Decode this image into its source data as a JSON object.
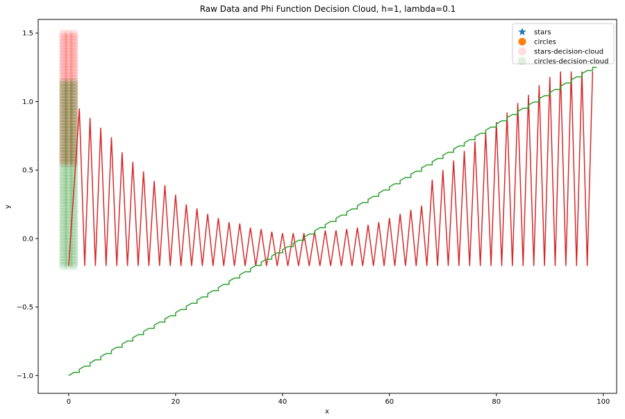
{
  "chart_data": {
    "type": "line",
    "title": "Raw Data and Phi Function Decision Cloud, h=1, lambda=0.1",
    "xlabel": "x",
    "ylabel": "y",
    "xlim": [
      -5.7,
      102.5
    ],
    "ylim": [
      -1.13,
      1.6
    ],
    "x_ticks": [
      0,
      20,
      40,
      60,
      80,
      100
    ],
    "x_tick_labels": [
      "0",
      "20",
      "40",
      "60",
      "80",
      "100"
    ],
    "y_ticks": [
      -1.0,
      -0.5,
      0.0,
      0.5,
      1.0,
      1.5
    ],
    "y_tick_labels": [
      "−1.0",
      "−0.5",
      "0.0",
      "0.5",
      "1.0",
      "1.5"
    ],
    "grid": false,
    "legend_position": "top-right",
    "legend": [
      {
        "label": "stars",
        "marker": "star",
        "color": "#1f77b4"
      },
      {
        "label": "circles",
        "marker": "circle",
        "color": "#ff7f0e"
      },
      {
        "label": "stars-decision-cloud",
        "marker": "circle-faint",
        "color": "#ff0000"
      },
      {
        "label": "circles-decision-cloud",
        "marker": "circle-faint",
        "color": "#008000"
      }
    ],
    "colors": {
      "zigzag": "#d62728",
      "staircase": "#2ca02c",
      "stars_cloud": "#ff0000",
      "circles_cloud": "#008000"
    },
    "series": [
      {
        "kind": "zigzag",
        "x_range": [
          0,
          98
        ],
        "trough_y": -0.2,
        "peaks": [
          [
            2,
            0.95
          ],
          [
            4,
            0.88
          ],
          [
            6,
            0.81
          ],
          [
            8,
            0.74
          ],
          [
            10,
            0.63
          ],
          [
            12,
            0.56
          ],
          [
            14,
            0.49
          ],
          [
            16,
            0.42
          ],
          [
            18,
            0.39
          ],
          [
            20,
            0.32
          ],
          [
            22,
            0.25
          ],
          [
            24,
            0.22
          ],
          [
            26,
            0.18
          ],
          [
            28,
            0.15
          ],
          [
            30,
            0.12
          ],
          [
            32,
            0.11
          ],
          [
            34,
            0.08
          ],
          [
            36,
            0.07
          ],
          [
            38,
            0.05
          ],
          [
            40,
            0.04
          ],
          [
            42,
            0.04
          ],
          [
            44,
            0.04
          ],
          [
            46,
            0.05
          ],
          [
            48,
            0.06
          ],
          [
            50,
            0.06
          ],
          [
            52,
            0.07
          ],
          [
            54,
            0.08
          ],
          [
            56,
            0.1
          ],
          [
            58,
            0.12
          ],
          [
            60,
            0.15
          ],
          [
            62,
            0.18
          ],
          [
            64,
            0.21
          ],
          [
            66,
            0.24
          ],
          [
            68,
            0.43
          ],
          [
            70,
            0.5
          ],
          [
            72,
            0.57
          ],
          [
            74,
            0.64
          ],
          [
            76,
            0.71
          ],
          [
            78,
            0.78
          ],
          [
            80,
            0.85
          ],
          [
            82,
            0.92
          ],
          [
            84,
            0.99
          ],
          [
            86,
            1.05
          ],
          [
            88,
            1.12
          ],
          [
            90,
            1.18
          ],
          [
            92,
            1.22
          ],
          [
            94,
            1.22
          ],
          [
            96,
            1.22
          ],
          [
            98,
            1.22
          ]
        ]
      },
      {
        "kind": "staircase",
        "x_range": [
          0,
          98
        ],
        "y_range": [
          -1.0,
          1.25
        ]
      },
      {
        "kind": "cloud",
        "name": "stars-decision-cloud",
        "x": [
          -1,
          0,
          1
        ],
        "y_range": [
          0.55,
          1.5
        ]
      },
      {
        "kind": "cloud",
        "name": "circles-decision-cloud",
        "x": [
          -1,
          0,
          1
        ],
        "y_range": [
          -0.2,
          1.15
        ]
      }
    ]
  }
}
